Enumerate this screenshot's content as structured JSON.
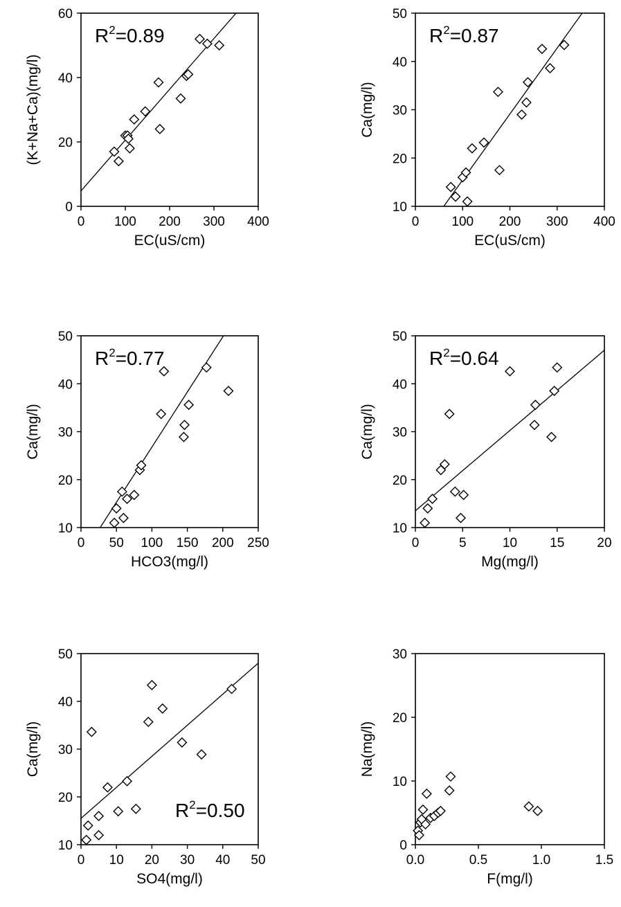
{
  "chart_data": [
    {
      "type": "scatter",
      "xlabel": "EC(uS/cm)",
      "ylabel": "(K+Na+Ca)(mg/l)",
      "xlim": [
        0,
        400
      ],
      "ylim": [
        0,
        60
      ],
      "xticks": [
        "0",
        "100",
        "200",
        "300",
        "400"
      ],
      "yticks": [
        "0",
        "20",
        "40",
        "60"
      ],
      "r2": "=0.89",
      "r2_position": "top-left",
      "fit_line": [
        [
          0,
          4.8
        ],
        [
          350,
          60
        ]
      ],
      "points": [
        [
          75,
          17
        ],
        [
          85,
          14
        ],
        [
          100,
          22
        ],
        [
          105,
          22
        ],
        [
          107,
          21
        ],
        [
          110,
          18
        ],
        [
          120,
          27
        ],
        [
          145,
          29.5
        ],
        [
          175,
          38.5
        ],
        [
          178,
          24
        ],
        [
          225,
          33.5
        ],
        [
          238,
          40.5
        ],
        [
          242,
          41
        ],
        [
          268,
          52
        ],
        [
          285,
          50.5
        ],
        [
          312,
          50
        ]
      ]
    },
    {
      "type": "scatter",
      "xlabel": "EC(uS/cm)",
      "ylabel": "Ca(mg/l)",
      "xlim": [
        0,
        400
      ],
      "ylim": [
        10,
        50
      ],
      "xticks": [
        "0",
        "100",
        "200",
        "300",
        "400"
      ],
      "yticks": [
        "10",
        "20",
        "30",
        "40",
        "50"
      ],
      "r2": "=0.87",
      "r2_position": "top-left",
      "fit_line": [
        [
          60,
          10
        ],
        [
          353,
          50
        ]
      ],
      "points": [
        [
          75,
          14
        ],
        [
          85,
          12
        ],
        [
          100,
          16
        ],
        [
          107,
          17
        ],
        [
          110,
          11
        ],
        [
          120,
          22
        ],
        [
          145,
          23.2
        ],
        [
          175,
          33.7
        ],
        [
          178,
          17.5
        ],
        [
          225,
          29
        ],
        [
          235,
          31.5
        ],
        [
          238,
          35.7
        ],
        [
          268,
          42.6
        ],
        [
          285,
          38.6
        ],
        [
          315,
          43.4
        ]
      ]
    },
    {
      "type": "scatter",
      "xlabel": "HCO3(mg/l)",
      "ylabel": "Ca(mg/l)",
      "xlim": [
        0,
        250
      ],
      "ylim": [
        10,
        50
      ],
      "xticks": [
        "0",
        "50",
        "100",
        "150",
        "200",
        "250"
      ],
      "yticks": [
        "10",
        "20",
        "30",
        "40",
        "50"
      ],
      "r2": "=0.77",
      "r2_position": "top-left",
      "fit_line": [
        [
          27,
          10
        ],
        [
          201,
          50
        ]
      ],
      "points": [
        [
          47,
          11
        ],
        [
          50,
          14
        ],
        [
          58,
          17.5
        ],
        [
          60,
          12
        ],
        [
          65,
          16
        ],
        [
          75,
          16.8
        ],
        [
          83,
          22
        ],
        [
          85,
          23
        ],
        [
          113,
          33.7
        ],
        [
          117,
          42.6
        ],
        [
          145,
          28.9
        ],
        [
          146,
          31.4
        ],
        [
          152,
          35.6
        ],
        [
          177,
          43.4
        ],
        [
          208,
          38.5
        ]
      ]
    },
    {
      "type": "scatter",
      "xlabel": "Mg(mg/l)",
      "ylabel": "Ca(mg/l)",
      "xlim": [
        0,
        20
      ],
      "ylim": [
        10,
        50
      ],
      "xticks": [
        "0",
        "5",
        "10",
        "15",
        "20"
      ],
      "yticks": [
        "10",
        "20",
        "30",
        "40",
        "50"
      ],
      "r2": "=0.64",
      "r2_position": "top-left",
      "fit_line": [
        [
          0,
          13.5
        ],
        [
          20,
          47
        ]
      ],
      "points": [
        [
          1,
          11
        ],
        [
          1.3,
          14
        ],
        [
          1.8,
          16
        ],
        [
          2.7,
          22
        ],
        [
          3.1,
          23.2
        ],
        [
          3.6,
          33.7
        ],
        [
          4.2,
          17.5
        ],
        [
          4.8,
          12
        ],
        [
          5.1,
          16.8
        ],
        [
          10,
          42.6
        ],
        [
          12.6,
          31.4
        ],
        [
          12.7,
          35.6
        ],
        [
          14.4,
          28.9
        ],
        [
          14.7,
          38.5
        ],
        [
          15,
          43.4
        ]
      ]
    },
    {
      "type": "scatter",
      "xlabel": "SO4(mg/l)",
      "ylabel": "Ca(mg/l)",
      "xlim": [
        0,
        50
      ],
      "ylim": [
        10,
        50
      ],
      "xticks": [
        "0",
        "10",
        "20",
        "30",
        "40",
        "50"
      ],
      "yticks": [
        "10",
        "20",
        "30",
        "40",
        "50"
      ],
      "r2": "=0.50",
      "r2_position": "bottom-right",
      "fit_line": [
        [
          0,
          15.5
        ],
        [
          50,
          48
        ]
      ],
      "points": [
        [
          1.5,
          11
        ],
        [
          2,
          14
        ],
        [
          3,
          33.6
        ],
        [
          5,
          12
        ],
        [
          5,
          16
        ],
        [
          7.5,
          22
        ],
        [
          10.5,
          17
        ],
        [
          13,
          23.3
        ],
        [
          15.5,
          17.5
        ],
        [
          19,
          35.7
        ],
        [
          20,
          43.4
        ],
        [
          23,
          38.5
        ],
        [
          28.5,
          31.4
        ],
        [
          34,
          28.9
        ],
        [
          42.5,
          42.6
        ]
      ]
    },
    {
      "type": "scatter",
      "xlabel": "F(mg/l)",
      "ylabel": "Na(mg/l)",
      "xlim": [
        0,
        1.5
      ],
      "ylim": [
        0,
        30
      ],
      "xticks": [
        "0.0",
        "0.5",
        "1.0",
        "1.5"
      ],
      "yticks": [
        "0",
        "10",
        "20",
        "30"
      ],
      "r2": "",
      "r2_position": "",
      "fit_line": null,
      "points": [
        [
          0.02,
          2.2
        ],
        [
          0.03,
          1.5
        ],
        [
          0.04,
          3.5
        ],
        [
          0.05,
          4.0
        ],
        [
          0.06,
          5.5
        ],
        [
          0.08,
          3.2
        ],
        [
          0.09,
          8.0
        ],
        [
          0.12,
          4.2
        ],
        [
          0.15,
          4.5
        ],
        [
          0.18,
          5.0
        ],
        [
          0.2,
          5.3
        ],
        [
          0.27,
          8.5
        ],
        [
          0.28,
          10.7
        ],
        [
          0.9,
          6.0
        ],
        [
          0.97,
          5.3
        ]
      ]
    }
  ]
}
